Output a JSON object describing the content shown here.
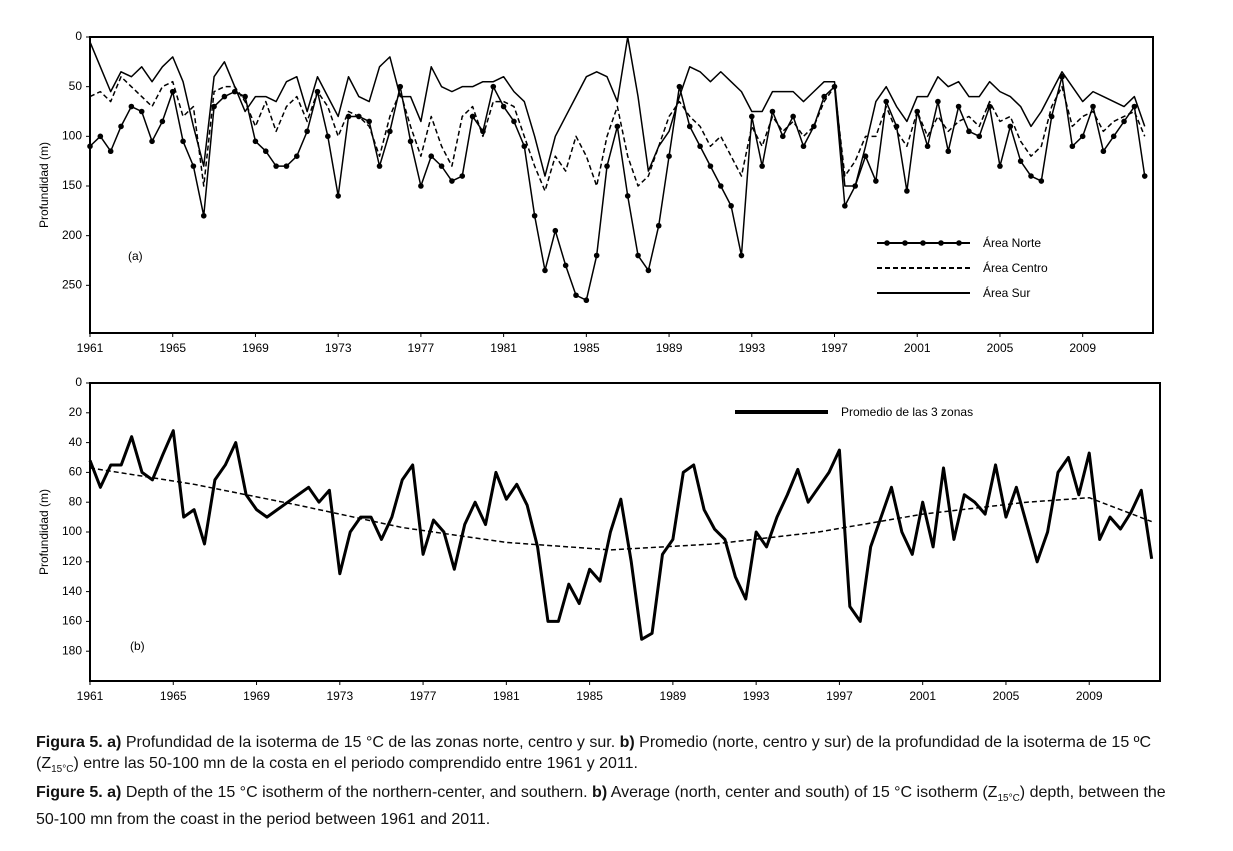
{
  "chart_data": [
    {
      "type": "line",
      "panel_label": "(a)",
      "ylabel": "Profundidad (m)",
      "xlim": [
        1961,
        2012.4
      ],
      "xticks": [
        1961,
        1965,
        1969,
        1973,
        1977,
        1981,
        1985,
        1989,
        1993,
        1997,
        2001,
        2005,
        2009
      ],
      "ylim": [
        0,
        298
      ],
      "yticks": [
        0,
        50,
        100,
        150,
        200,
        250
      ],
      "y_inverted": true,
      "x": [
        1961,
        1961.5,
        1962,
        1962.5,
        1963,
        1963.5,
        1964,
        1964.5,
        1965,
        1965.5,
        1966,
        1966.5,
        1967,
        1967.5,
        1968,
        1968.5,
        1969,
        1969.5,
        1970,
        1970.5,
        1971,
        1971.5,
        1972,
        1972.5,
        1973,
        1973.5,
        1974,
        1974.5,
        1975,
        1975.5,
        1976,
        1976.5,
        1977,
        1977.5,
        1978,
        1978.5,
        1979,
        1979.5,
        1980,
        1980.5,
        1981,
        1981.5,
        1982,
        1982.5,
        1983,
        1983.5,
        1984,
        1984.5,
        1985,
        1985.5,
        1986,
        1986.5,
        1987,
        1987.5,
        1988,
        1988.5,
        1989,
        1989.5,
        1990,
        1990.5,
        1991,
        1991.5,
        1992,
        1992.5,
        1993,
        1993.5,
        1994,
        1994.5,
        1995,
        1995.5,
        1996,
        1996.5,
        1997,
        1997.5,
        1998,
        1998.5,
        1999,
        1999.5,
        2000,
        2000.5,
        2001,
        2001.5,
        2002,
        2002.5,
        2003,
        2003.5,
        2004,
        2004.5,
        2005,
        2005.5,
        2006,
        2006.5,
        2007,
        2007.5,
        2008,
        2008.5,
        2009,
        2009.5,
        2010,
        2010.5,
        2011,
        2011.5,
        2012
      ],
      "series": [
        {
          "name": "Área Norte",
          "color": "#000000",
          "marker": true,
          "dash": false,
          "values": [
            110,
            100,
            115,
            90,
            70,
            75,
            105,
            85,
            55,
            105,
            130,
            180,
            70,
            60,
            55,
            60,
            105,
            115,
            130,
            130,
            120,
            95,
            55,
            100,
            160,
            80,
            80,
            85,
            130,
            95,
            50,
            105,
            150,
            120,
            130,
            145,
            140,
            80,
            95,
            50,
            70,
            85,
            110,
            180,
            235,
            195,
            230,
            260,
            265,
            220,
            130,
            90,
            160,
            220,
            235,
            190,
            120,
            50,
            90,
            110,
            130,
            150,
            170,
            220,
            80,
            130,
            75,
            100,
            80,
            110,
            90,
            60,
            50,
            170,
            150,
            120,
            145,
            65,
            90,
            155,
            75,
            110,
            65,
            115,
            70,
            95,
            100,
            70,
            130,
            90,
            125,
            140,
            145,
            80,
            40,
            110,
            100,
            70,
            115,
            100,
            85,
            70,
            140
          ]
        },
        {
          "name": "Área Centro",
          "color": "#000000",
          "marker": false,
          "dash": true,
          "values": [
            60,
            55,
            65,
            40,
            50,
            60,
            70,
            50,
            45,
            80,
            70,
            150,
            55,
            50,
            50,
            65,
            90,
            65,
            95,
            70,
            60,
            85,
            55,
            70,
            100,
            75,
            80,
            90,
            120,
            80,
            55,
            90,
            120,
            80,
            110,
            130,
            80,
            70,
            100,
            65,
            65,
            70,
            100,
            130,
            155,
            120,
            135,
            100,
            120,
            150,
            100,
            70,
            120,
            150,
            140,
            110,
            80,
            65,
            80,
            90,
            110,
            100,
            120,
            140,
            90,
            110,
            80,
            95,
            85,
            100,
            90,
            65,
            50,
            140,
            125,
            100,
            100,
            70,
            95,
            110,
            75,
            100,
            80,
            95,
            85,
            80,
            90,
            65,
            85,
            80,
            105,
            120,
            110,
            70,
            50,
            90,
            80,
            75,
            95,
            85,
            80,
            75,
            100
          ]
        },
        {
          "name": "Área Sur",
          "color": "#000000",
          "marker": false,
          "dash": false,
          "values": [
            5,
            30,
            55,
            35,
            40,
            30,
            45,
            30,
            20,
            45,
            90,
            130,
            40,
            25,
            50,
            75,
            60,
            60,
            65,
            45,
            40,
            75,
            40,
            60,
            80,
            40,
            60,
            65,
            30,
            20,
            60,
            60,
            85,
            30,
            50,
            55,
            50,
            50,
            45,
            45,
            40,
            55,
            65,
            100,
            140,
            100,
            80,
            60,
            40,
            35,
            40,
            65,
            0,
            60,
            135,
            110,
            95,
            60,
            30,
            35,
            45,
            35,
            45,
            55,
            75,
            75,
            55,
            55,
            55,
            65,
            55,
            45,
            45,
            150,
            150,
            110,
            65,
            50,
            70,
            85,
            60,
            60,
            40,
            50,
            45,
            60,
            60,
            45,
            55,
            60,
            70,
            90,
            75,
            55,
            35,
            50,
            65,
            55,
            60,
            65,
            70,
            60,
            90
          ]
        }
      ]
    },
    {
      "type": "line",
      "panel_label": "(b)",
      "ylabel": "Profundidad (m)",
      "xlim": [
        1961,
        2012.4
      ],
      "xticks": [
        1961,
        1965,
        1969,
        1973,
        1977,
        1981,
        1985,
        1989,
        1993,
        1997,
        2001,
        2005,
        2009
      ],
      "ylim": [
        0,
        200
      ],
      "yticks": [
        0,
        20,
        40,
        60,
        80,
        100,
        120,
        140,
        160,
        180
      ],
      "y_inverted": true,
      "x": [
        1961,
        1961.5,
        1962,
        1962.5,
        1963,
        1963.5,
        1964,
        1964.5,
        1965,
        1965.5,
        1966,
        1966.5,
        1967,
        1967.5,
        1968,
        1968.5,
        1969,
        1969.5,
        1970,
        1970.5,
        1971,
        1971.5,
        1972,
        1972.5,
        1973,
        1973.5,
        1974,
        1974.5,
        1975,
        1975.5,
        1976,
        1976.5,
        1977,
        1977.5,
        1978,
        1978.5,
        1979,
        1979.5,
        1980,
        1980.5,
        1981,
        1981.5,
        1982,
        1982.5,
        1983,
        1983.5,
        1984,
        1984.5,
        1985,
        1985.5,
        1986,
        1986.5,
        1987,
        1987.5,
        1988,
        1988.5,
        1989,
        1989.5,
        1990,
        1990.5,
        1991,
        1991.5,
        1992,
        1992.5,
        1993,
        1993.5,
        1994,
        1994.5,
        1995,
        1995.5,
        1996,
        1996.5,
        1997,
        1997.5,
        1998,
        1998.5,
        1999,
        1999.5,
        2000,
        2000.5,
        2001,
        2001.5,
        2002,
        2002.5,
        2003,
        2003.5,
        2004,
        2004.5,
        2005,
        2005.5,
        2006,
        2006.5,
        2007,
        2007.5,
        2008,
        2008.5,
        2009,
        2009.5,
        2010,
        2010.5,
        2011,
        2011.5,
        2012
      ],
      "series": [
        {
          "name": "Promedio de las 3 zonas",
          "color": "#000000",
          "marker": false,
          "dash": false,
          "width": 3,
          "values": [
            52,
            70,
            55,
            55,
            36,
            60,
            65,
            48,
            32,
            90,
            85,
            108,
            65,
            55,
            40,
            75,
            85,
            90,
            85,
            80,
            75,
            70,
            80,
            72,
            128,
            100,
            90,
            90,
            105,
            90,
            65,
            55,
            115,
            92,
            100,
            125,
            95,
            80,
            95,
            60,
            78,
            68,
            82,
            110,
            160,
            160,
            135,
            148,
            125,
            133,
            100,
            78,
            120,
            172,
            168,
            115,
            105,
            60,
            55,
            85,
            98,
            105,
            130,
            145,
            100,
            110,
            90,
            75,
            58,
            80,
            70,
            60,
            45,
            150,
            160,
            110,
            90,
            70,
            100,
            115,
            80,
            110,
            57,
            105,
            75,
            80,
            88,
            55,
            90,
            70,
            95,
            120,
            100,
            60,
            50,
            75,
            47,
            105,
            90,
            98,
            87,
            72,
            118
          ]
        },
        {
          "color": "#000000",
          "marker": false,
          "dash": true,
          "width": 1.5,
          "x": [
            1961,
            1966,
            1971,
            1976,
            1981,
            1986,
            1991,
            1996,
            2001,
            2006,
            2009,
            2012
          ],
          "values": [
            57,
            68,
            82,
            97,
            107,
            112,
            108,
            100,
            88,
            80,
            77,
            93
          ]
        }
      ]
    }
  ],
  "caption": {
    "es": {
      "label": "Figura 5.",
      "a": "a)",
      "t1": " Profundidad de la isoterma de 15 °C de las zonas norte, centro y sur. ",
      "b": "b)",
      "t2": " Promedio (norte, centro y sur) de la profundidad de la isoterma de 15 ºC (Z",
      "sub": "15°C",
      "t3": ") entre las 50-100 mn de la costa en el periodo comprendido entre 1961 y 2011."
    },
    "en": {
      "label": "Figure 5.",
      "a": "a)",
      "t1": " Depth of the 15 °C isotherm of the northern-center, and southern. ",
      "b": "b)",
      "t2": " Average (north, center and south) of 15 °C isotherm (Z",
      "sub": "15°C",
      "t3": ") depth, between the 50-100 mn from the coast in the period between 1961 and 2011."
    }
  }
}
